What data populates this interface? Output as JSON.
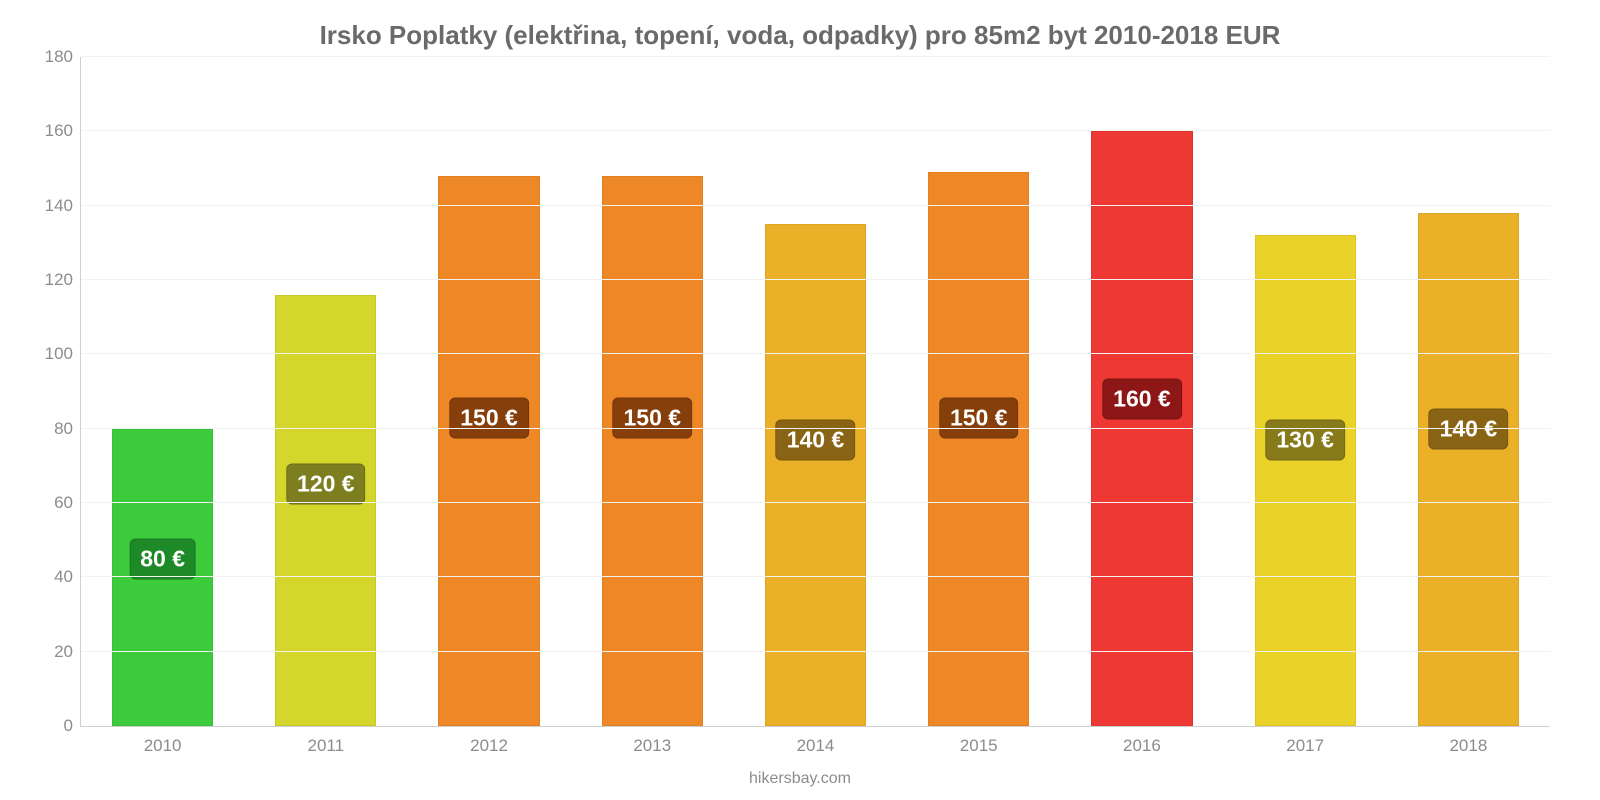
{
  "chart": {
    "type": "bar",
    "title": "Irsko Poplatky (elektřina, topení, voda, odpadky) pro 85m2 byt 2010-2018 EUR",
    "title_fontsize": 26,
    "title_color": "#6a6a6a",
    "credit": "hikersbay.com",
    "credit_fontsize": 16,
    "credit_color": "#8c8c8c",
    "background_color": "#ffffff",
    "grid_color": "#f2f2f2",
    "axis_line_color": "#cfcfcf",
    "axis_label_color": "#8c8c8c",
    "axis_label_fontsize": 17,
    "ylim": [
      0,
      180
    ],
    "ytick_step": 20,
    "bar_width_ratio": 0.62,
    "value_label_fontsize": 23,
    "value_label_text_color": "#ffffff",
    "categories": [
      "2010",
      "2011",
      "2012",
      "2013",
      "2014",
      "2015",
      "2016",
      "2017",
      "2018"
    ],
    "values": [
      80,
      116,
      148,
      148,
      135,
      149,
      160,
      132,
      138
    ],
    "display_labels": [
      "80 €",
      "120 €",
      "150 €",
      "150 €",
      "140 €",
      "150 €",
      "160 €",
      "130 €",
      "140 €"
    ],
    "bar_colors": [
      "#3bcb3b",
      "#d4d62c",
      "#ee8827",
      "#ee8827",
      "#eab028",
      "#ee8827",
      "#ed3833",
      "#ead228",
      "#eab028"
    ],
    "label_bg_colors": [
      "#1e8a27",
      "#7d7e1f",
      "#863e0b",
      "#863e0b",
      "#8a6415",
      "#863e0b",
      "#8d1717",
      "#867a1a",
      "#8a6415"
    ],
    "label_y_values": [
      45,
      65,
      83,
      83,
      77,
      83,
      88,
      77,
      80
    ]
  }
}
